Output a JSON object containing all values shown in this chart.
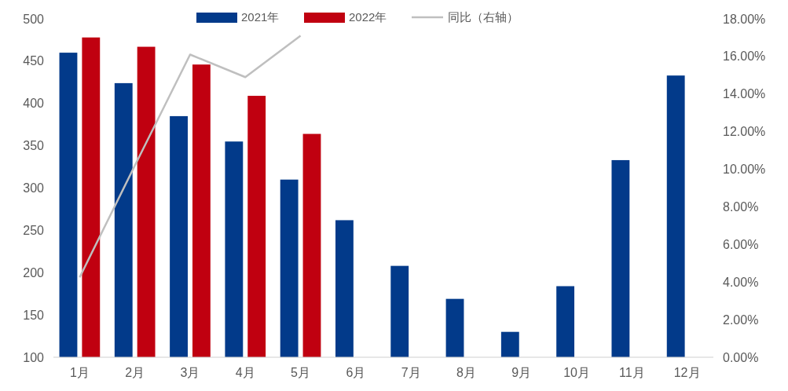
{
  "chart_data": {
    "type": "bar",
    "categories": [
      "1月",
      "2月",
      "3月",
      "4月",
      "5月",
      "6月",
      "7月",
      "8月",
      "9月",
      "10月",
      "11月",
      "12月"
    ],
    "series": [
      {
        "name": "2021年",
        "color": "#023a8a",
        "values": [
          460,
          424,
          385,
          355,
          310,
          262,
          208,
          169,
          130,
          184,
          333,
          433
        ]
      },
      {
        "name": "2022年",
        "color": "#c00010",
        "values": [
          478,
          467,
          446,
          409,
          364,
          null,
          null,
          null,
          null,
          null,
          null,
          null
        ]
      },
      {
        "name": "同比（右轴）",
        "type": "line",
        "axis": "y2",
        "color": "#bfbfbf",
        "values": [
          4.25,
          10.2,
          16.1,
          14.9,
          17.1,
          null,
          null,
          null,
          null,
          null,
          null,
          null
        ]
      }
    ],
    "ylim": [
      100,
      500
    ],
    "yticks": [
      100,
      150,
      200,
      250,
      300,
      350,
      400,
      450,
      500
    ],
    "y2lim": [
      0,
      18
    ],
    "y2ticks": [
      {
        "value": 0,
        "label": "0.00%"
      },
      {
        "value": 2,
        "label": "2.00%"
      },
      {
        "value": 4,
        "label": "4.00%"
      },
      {
        "value": 6,
        "label": "6.00%"
      },
      {
        "value": 8,
        "label": "8.00%"
      },
      {
        "value": 10,
        "label": "10.00%"
      },
      {
        "value": 12,
        "label": "12.00%"
      },
      {
        "value": 14,
        "label": "14.00%"
      },
      {
        "value": 16,
        "label": "16.00%"
      },
      {
        "value": 18,
        "label": "18.00%"
      }
    ],
    "grid": false,
    "legend": "top"
  }
}
